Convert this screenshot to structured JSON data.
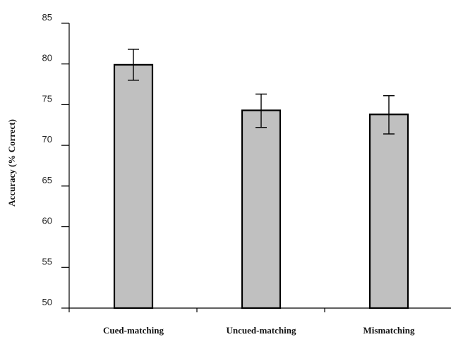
{
  "chart_data": {
    "type": "bar",
    "categories": [
      "Cued-matching",
      "Uncued-matching",
      "Mismatching"
    ],
    "values": [
      79.9,
      74.3,
      73.8
    ],
    "error_low": [
      78.0,
      72.2,
      71.4
    ],
    "error_high": [
      81.8,
      76.3,
      76.1
    ],
    "ylabel": "Accuracy (% Correct)",
    "xlabel": "",
    "ylim": [
      50,
      85
    ],
    "yticks": [
      50,
      55,
      60,
      65,
      70,
      75,
      80,
      85
    ],
    "grid": false,
    "bar_color": "#c0c0c0"
  }
}
